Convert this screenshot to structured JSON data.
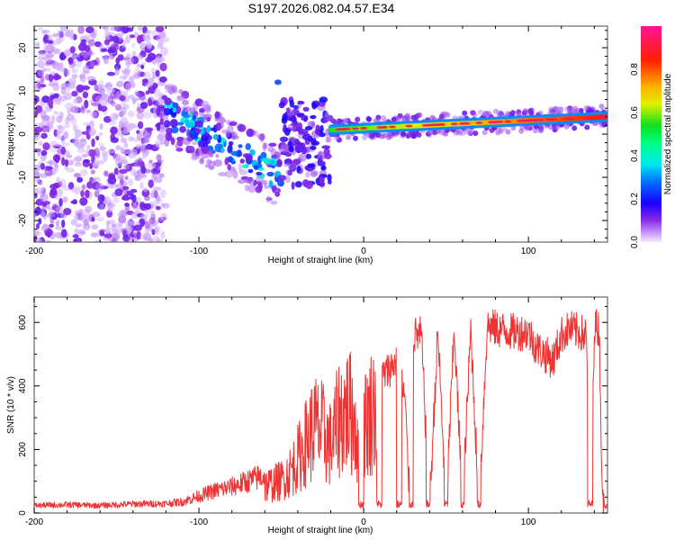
{
  "title": "S197.2026.082.04.57.E34",
  "chart_data": [
    {
      "type": "heatmap",
      "name": "spectrogram",
      "title": "S197.2026.082.04.57.E34",
      "xlabel": "Height of straight line (km)",
      "ylabel": "Frequency (Hz)",
      "xlim": [
        -200,
        148
      ],
      "ylim": [
        -25,
        25
      ],
      "x_ticks": [
        -200,
        -100,
        0,
        100
      ],
      "x_tick_labels": [
        "-200",
        "-100",
        "0",
        "100"
      ],
      "x_minor_step": 20,
      "y_ticks": [
        -20,
        -10,
        0,
        10,
        20
      ],
      "y_tick_labels": [
        "-20",
        "-10",
        "0",
        "10",
        "20"
      ],
      "y_minor_step": 2,
      "grid": false,
      "colorbar": {
        "label": "Normalized spectral amplitude",
        "range": [
          0,
          1
        ],
        "ticks": [
          0.0,
          0.2,
          0.4,
          0.6,
          0.8
        ],
        "tick_labels": [
          "0.0",
          "0.2",
          "0.4",
          "0.6",
          "0.8"
        ],
        "colormap": [
          "#ffffff",
          "#d9b8ff",
          "#8a2be2",
          "#2a00ff",
          "#0066ff",
          "#00e5ff",
          "#00ff40",
          "#c8ff00",
          "#ffe000",
          "#ff8000",
          "#ff1a1a",
          "#ff1493"
        ]
      },
      "regions": [
        {
          "desc": "diffuse noise",
          "x_range": [
            -200,
            -120
          ],
          "freq_range": [
            -25,
            25
          ],
          "amplitude": [
            0.0,
            0.2
          ]
        },
        {
          "desc": "descending chirp",
          "x_range": [
            -120,
            -50
          ],
          "freq_start": 5,
          "freq_end": -10,
          "amplitude": [
            0.1,
            0.5
          ]
        },
        {
          "desc": "spot",
          "x": -52,
          "freq": 12,
          "amplitude": 0.25
        },
        {
          "desc": "scattered signal",
          "x_range": [
            -50,
            -20
          ],
          "freq_range": [
            -12,
            8
          ],
          "amplitude": [
            0.1,
            0.45
          ]
        },
        {
          "desc": "steady tone",
          "x_range": [
            -20,
            148
          ],
          "freq_start": 1,
          "freq_end": 4,
          "amplitude": [
            0.5,
            0.95
          ]
        }
      ]
    },
    {
      "type": "line",
      "name": "snr",
      "xlabel": "Height of straight line (km)",
      "ylabel": "SNR (10 * v/v)",
      "xlim": [
        -200,
        148
      ],
      "ylim": [
        0,
        680
      ],
      "x_ticks": [
        -200,
        -100,
        0,
        100
      ],
      "x_tick_labels": [
        "-200",
        "-100",
        "0",
        "100"
      ],
      "x_minor_step": 20,
      "y_ticks": [
        0,
        200,
        400,
        600
      ],
      "y_tick_labels": [
        "0",
        "200",
        "400",
        "600"
      ],
      "y_minor_step": 50,
      "grid": false,
      "series": [
        {
          "name": "SNR",
          "color": "#ee3333",
          "x": [
            -200,
            -180,
            -160,
            -140,
            -120,
            -110,
            -100,
            -90,
            -80,
            -70,
            -60,
            -50,
            -45,
            -40,
            -35,
            -30,
            -25,
            -20,
            -15,
            -10,
            -5,
            -2,
            0,
            5,
            10,
            15,
            20,
            25,
            28,
            30,
            35,
            40,
            45,
            50,
            55,
            60,
            65,
            70,
            75,
            80,
            90,
            100,
            105,
            110,
            115,
            120,
            125,
            130,
            135,
            138,
            140,
            143,
            145,
            148
          ],
          "y": [
            20,
            22,
            20,
            24,
            25,
            30,
            45,
            60,
            70,
            85,
            100,
            120,
            150,
            200,
            260,
            320,
            300,
            250,
            350,
            380,
            350,
            80,
            320,
            380,
            420,
            450,
            480,
            360,
            30,
            560,
            560,
            20,
            570,
            20,
            580,
            20,
            580,
            20,
            590,
            580,
            570,
            570,
            520,
            500,
            480,
            560,
            580,
            570,
            560,
            20,
            590,
            580,
            20,
            40
          ]
        }
      ],
      "dropouts": [
        [
          -3,
          0
        ],
        [
          8,
          11
        ],
        [
          20,
          23
        ],
        [
          28,
          30
        ],
        [
          38,
          40
        ],
        [
          49,
          51
        ],
        [
          59,
          61
        ],
        [
          69,
          71
        ],
        [
          136,
          139
        ],
        [
          146,
          148
        ]
      ]
    }
  ]
}
